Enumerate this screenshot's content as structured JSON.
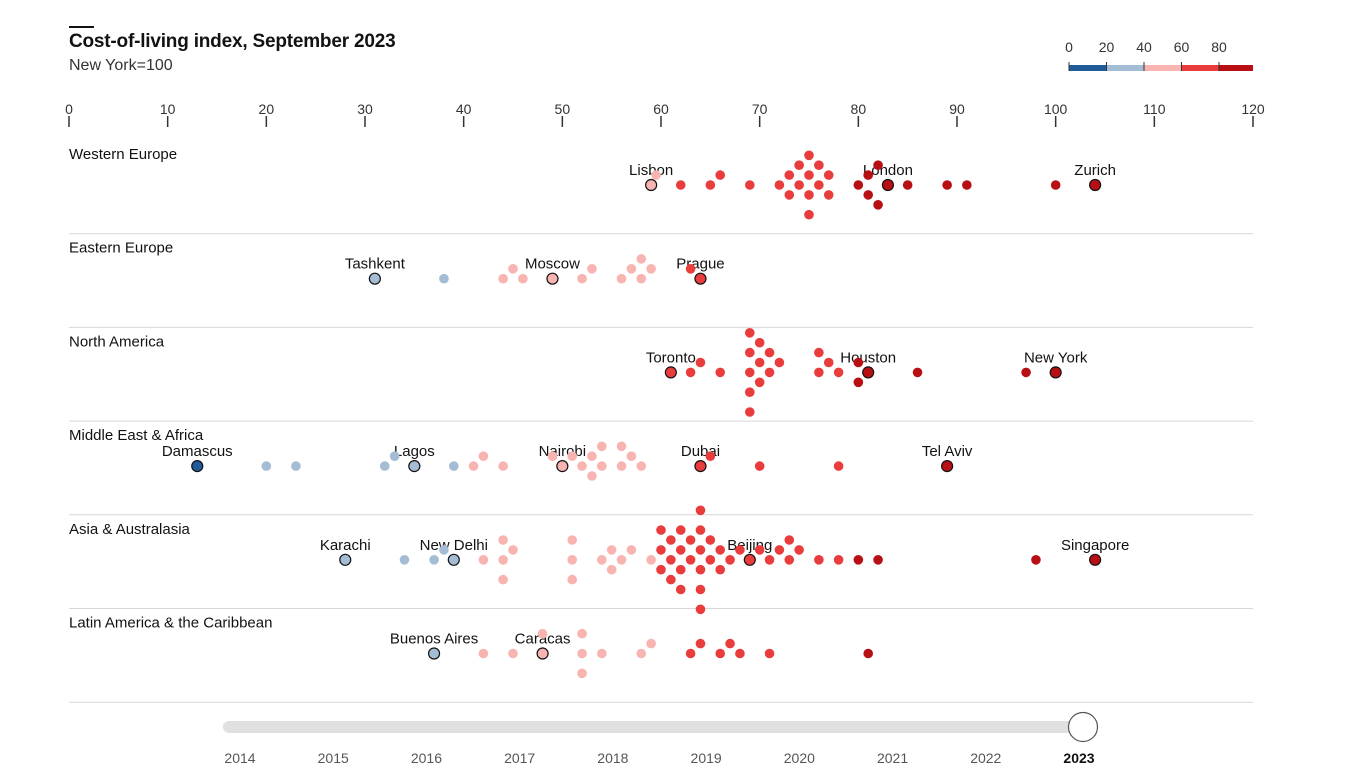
{
  "header": {
    "title": "Cost-of-living index, September 2023",
    "subtitle": "New York=100"
  },
  "legend": {
    "ticks": [
      "0",
      "20",
      "40",
      "60",
      "80"
    ],
    "colors": [
      "#1f5c99",
      "#a4bcd4",
      "#f7b4b0",
      "#e93c3c",
      "#b80f14"
    ]
  },
  "timeline": {
    "years": [
      "2014",
      "2015",
      "2016",
      "2017",
      "2018",
      "2019",
      "2020",
      "2021",
      "2022",
      "2023"
    ],
    "selected_year": "2023"
  },
  "chart_data": {
    "type": "scatter",
    "title": "Cost-of-living index, September 2023",
    "subtitle": "New York=100",
    "x_axis": {
      "min": 0,
      "max": 120,
      "ticks": [
        "0",
        "10",
        "20",
        "30",
        "40",
        "50",
        "60",
        "70",
        "80",
        "90",
        "100",
        "110",
        "120"
      ]
    },
    "color_scale": {
      "breaks": [
        20,
        40,
        60,
        80
      ],
      "colors": [
        "#1f5c99",
        "#a4bcd4",
        "#f7b4b0",
        "#e93c3c",
        "#b80f14"
      ]
    },
    "groups": [
      {
        "name": "Western Europe",
        "labeled": [
          {
            "city": "Lisbon",
            "value": 59
          },
          {
            "city": "London",
            "value": 83
          },
          {
            "city": "Zurich",
            "value": 104
          }
        ],
        "values": [
          59.5,
          62,
          65,
          66,
          69,
          72,
          73,
          73,
          74,
          74,
          75,
          75,
          75,
          75,
          76,
          76,
          77,
          77,
          80,
          81,
          81,
          82,
          82,
          85,
          89,
          91,
          100
        ]
      },
      {
        "name": "Eastern Europe",
        "labeled": [
          {
            "city": "Tashkent",
            "value": 31
          },
          {
            "city": "Moscow",
            "value": 49
          },
          {
            "city": "Prague",
            "value": 64
          }
        ],
        "values": [
          38,
          44,
          45,
          46,
          52,
          53,
          56,
          57,
          58,
          58,
          59,
          63
        ]
      },
      {
        "name": "North America",
        "labeled": [
          {
            "city": "Toronto",
            "value": 61
          },
          {
            "city": "Houston",
            "value": 81
          },
          {
            "city": "New York",
            "value": 100
          }
        ],
        "values": [
          63,
          64,
          66,
          69,
          69,
          69,
          69,
          69,
          70,
          70,
          70,
          71,
          71,
          72,
          76,
          76,
          77,
          78,
          80,
          80,
          86,
          97
        ]
      },
      {
        "name": "Middle East & Africa",
        "labeled": [
          {
            "city": "Damascus",
            "value": 13
          },
          {
            "city": "Lagos",
            "value": 35
          },
          {
            "city": "Nairobi",
            "value": 50
          },
          {
            "city": "Dubai",
            "value": 64
          },
          {
            "city": "Tel Aviv",
            "value": 89
          }
        ],
        "values": [
          20,
          23,
          32,
          33,
          39,
          41,
          42,
          44,
          49,
          51,
          52,
          53,
          53,
          54,
          54,
          56,
          56,
          57,
          58,
          65,
          70,
          78
        ]
      },
      {
        "name": "Asia & Australasia",
        "labeled": [
          {
            "city": "Karachi",
            "value": 28
          },
          {
            "city": "New Delhi",
            "value": 39
          },
          {
            "city": "Beijing",
            "value": 69
          },
          {
            "city": "Singapore",
            "value": 104
          }
        ],
        "values": [
          34,
          37,
          38,
          42,
          44,
          44,
          44,
          45,
          51,
          51,
          51,
          54,
          55,
          55,
          56,
          57,
          59,
          60,
          60,
          60,
          61,
          61,
          61,
          62,
          62,
          62,
          62,
          63,
          63,
          64,
          64,
          64,
          64,
          64,
          64,
          65,
          65,
          66,
          66,
          67,
          68,
          70,
          71,
          72,
          73,
          73,
          74,
          76,
          78,
          80,
          82,
          98
        ]
      },
      {
        "name": "Latin America & the Caribbean",
        "labeled": [
          {
            "city": "Buenos Aires",
            "value": 37
          },
          {
            "city": "Caracas",
            "value": 48
          }
        ],
        "values": [
          42,
          45,
          48,
          52,
          52,
          52,
          54,
          58,
          59,
          63,
          64,
          66,
          67,
          68,
          71,
          81
        ]
      }
    ]
  }
}
